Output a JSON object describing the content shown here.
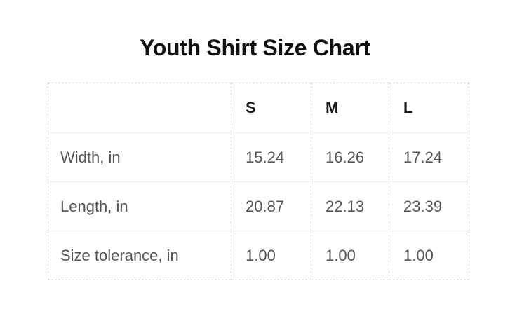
{
  "title": "Youth Shirt Size Chart",
  "table": {
    "columns": [
      "",
      "S",
      "M",
      "L"
    ],
    "rows": [
      {
        "label": "Width, in",
        "values": [
          "15.24",
          "16.26",
          "17.24"
        ]
      },
      {
        "label": "Length, in",
        "values": [
          "20.87",
          "22.13",
          "23.39"
        ]
      },
      {
        "label": "Size tolerance, in",
        "values": [
          "1.00",
          "1.00",
          "1.00"
        ]
      }
    ]
  },
  "chart_data": {
    "type": "table",
    "title": "Youth Shirt Size Chart",
    "columns": [
      "S",
      "M",
      "L"
    ],
    "rows": [
      {
        "label": "Width, in",
        "S": 15.24,
        "M": 16.26,
        "L": 17.24
      },
      {
        "label": "Length, in",
        "S": 20.87,
        "M": 22.13,
        "L": 23.39
      },
      {
        "label": "Size tolerance, in",
        "S": 1.0,
        "M": 1.0,
        "L": 1.0
      }
    ]
  },
  "colors": {
    "background": "#ffffff",
    "title_text": "#0f0f0f",
    "header_text": "#1a1a1a",
    "cell_text": "#555555",
    "dashed_border": "#bdbdbd",
    "row_separator": "#ececec"
  }
}
